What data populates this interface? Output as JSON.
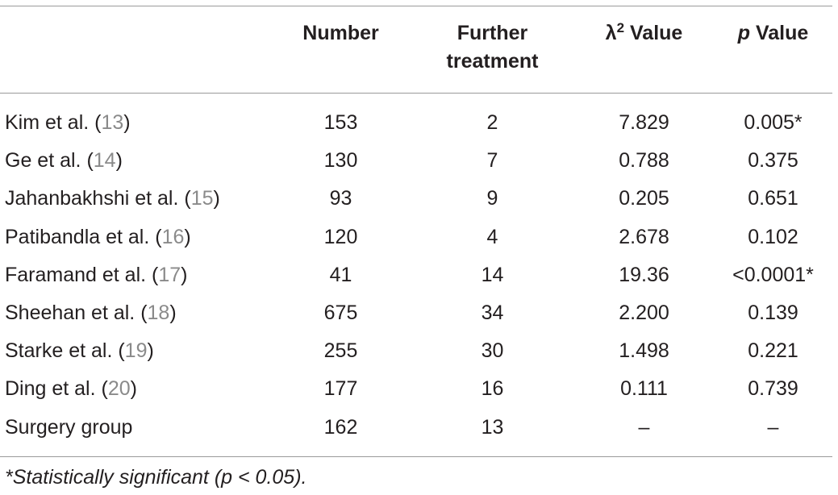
{
  "table": {
    "headers": {
      "study": "",
      "number": "Number",
      "further_line1": "Further",
      "further_line2": "treatment",
      "chi_symbol": "λ",
      "chi_sup": "2",
      "chi_rest": " Value",
      "p_italic": "p",
      "p_rest": " Value"
    },
    "rows": [
      {
        "name": "Kim et al. (",
        "ref": "13",
        "close": ")",
        "number": "153",
        "further": "2",
        "chi": "7.829",
        "p": "0.005*"
      },
      {
        "name": "Ge et al. (",
        "ref": "14",
        "close": ")",
        "number": "130",
        "further": "7",
        "chi": "0.788",
        "p": "0.375"
      },
      {
        "name": "Jahanbakhshi et al. (",
        "ref": "15",
        "close": ")",
        "number": "93",
        "further": "9",
        "chi": "0.205",
        "p": "0.651"
      },
      {
        "name": "Patibandla et al. (",
        "ref": "16",
        "close": ")",
        "number": "120",
        "further": "4",
        "chi": "2.678",
        "p": "0.102"
      },
      {
        "name": "Faramand et al. (",
        "ref": "17",
        "close": ")",
        "number": "41",
        "further": "14",
        "chi": "19.36",
        "p": "<0.0001*"
      },
      {
        "name": "Sheehan et al. (",
        "ref": "18",
        "close": ")",
        "number": "675",
        "further": "34",
        "chi": "2.200",
        "p": "0.139"
      },
      {
        "name": "Starke et al. (",
        "ref": "19",
        "close": ")",
        "number": "255",
        "further": "30",
        "chi": "1.498",
        "p": "0.221"
      },
      {
        "name": "Ding et al. (",
        "ref": "20",
        "close": ")",
        "number": "177",
        "further": "16",
        "chi": "0.111",
        "p": "0.739"
      },
      {
        "name": "Surgery group",
        "ref": "",
        "close": "",
        "number": "162",
        "further": "13",
        "chi": "–",
        "p": "–"
      }
    ]
  },
  "footnote": "*Statistically significant (p < 0.05)."
}
